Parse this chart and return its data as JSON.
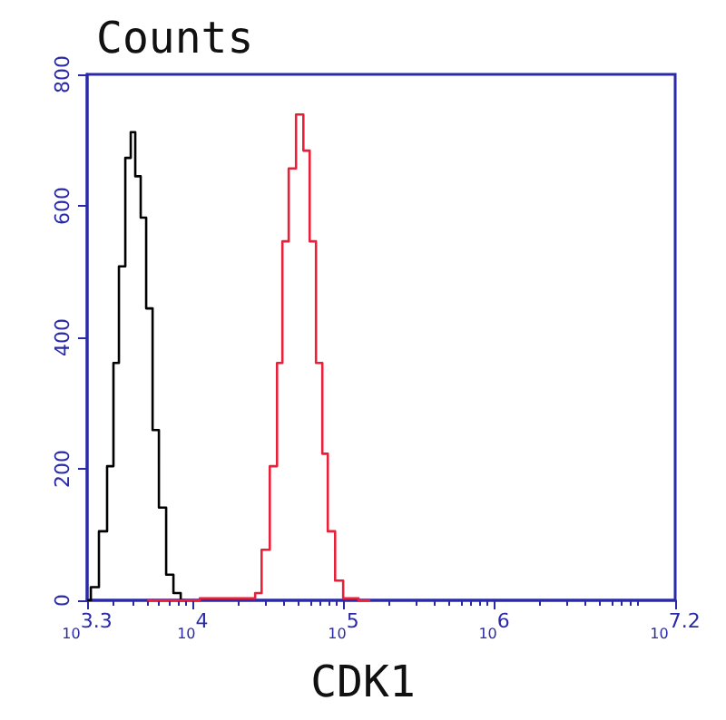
{
  "chart_data": {
    "type": "step",
    "ylabel": "Counts",
    "xlabel": "CDK1",
    "log": "x",
    "xlim": [
      1995,
      15848932
    ],
    "xticks": [
      {
        "value": 1995,
        "label": "10$^{3.3}$"
      },
      {
        "value": 10000,
        "label": "10$^{4}$"
      },
      {
        "value": 100000,
        "label": "10$^{5}$"
      },
      {
        "value": 1000000,
        "label": "10$^{6}$"
      },
      {
        "value": 15848932,
        "label": "10$^{7.2}$"
      }
    ],
    "ylim": [
      0,
      800
    ],
    "yticks": [
      0,
      200,
      400,
      600,
      800
    ],
    "grid": false,
    "marker": "none",
    "line_style": "solid",
    "series": [
      {
        "color": "#000000",
        "x": [
          2000,
          2230,
          2560,
          2860,
          3110,
          3380,
          3780,
          3990,
          4340,
          4710,
          5130,
          5730,
          6220,
          7150,
          7770,
          8930
        ],
        "values": [
          0,
          20,
          105,
          204,
          361,
          508,
          673,
          712,
          645,
          582,
          444,
          259,
          141,
          39,
          11,
          0
        ]
      },
      {
        "color": "#e8203a",
        "x": [
          4990,
          24900,
          27100,
          30300,
          34800,
          37800,
          41000,
          45800,
          51300,
          57300,
          62200,
          69500,
          75500,
          82100,
          94400,
          105000,
          151000
        ],
        "values": [
          0,
          3,
          11,
          77,
          204,
          361,
          546,
          657,
          739,
          684,
          546,
          361,
          223,
          105,
          30,
          3,
          0
        ]
      }
    ]
  }
}
